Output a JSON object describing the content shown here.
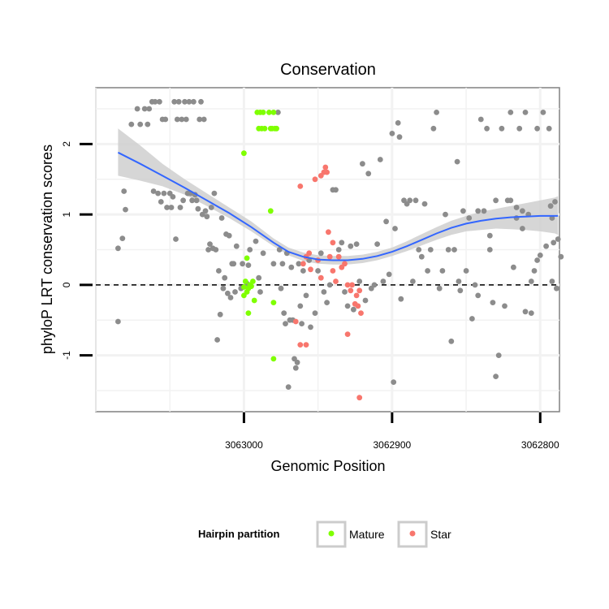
{
  "chart_data": {
    "type": "scatter",
    "title": "Conservation",
    "xlabel": "Genomic Position",
    "ylabel": "phyloP LRT conservation scores",
    "x_reversed": true,
    "xlim": [
      3063100,
      3062787
    ],
    "ylim": [
      -1.8,
      2.8
    ],
    "x_ticks": [
      3063000,
      3062900,
      3062800
    ],
    "x_tick_labels": [
      "3063000",
      "3062900",
      "3062800"
    ],
    "y_ticks": [
      -1,
      0,
      1,
      2
    ],
    "y_tick_labels": [
      "-1",
      "0",
      "1",
      "2"
    ],
    "grid": true,
    "reference_line": {
      "y": 0,
      "style": "dashed"
    },
    "legend": {
      "title": "Hairpin partition",
      "position": "bottom",
      "entries": [
        {
          "label": "Mature",
          "color": "#7FFF00"
        },
        {
          "label": "Star",
          "color": "#F8766D"
        }
      ]
    },
    "colors": {
      "other": "#8c8c8c",
      "mature": "#7FFF00",
      "star": "#F8766D",
      "smooth": "#3366FF",
      "ribbon": "#cccccc"
    },
    "series": [
      {
        "name": "",
        "group": "other",
        "points": [
          [
            3063085,
            -0.52
          ],
          [
            3063085,
            0.52
          ],
          [
            3063082,
            0.66
          ],
          [
            3063081,
            1.33
          ],
          [
            3063080,
            1.07
          ],
          [
            3063076,
            2.28
          ],
          [
            3063072,
            2.5
          ],
          [
            3063070,
            2.28
          ],
          [
            3063067,
            2.5
          ],
          [
            3063065,
            2.28
          ],
          [
            3063064,
            2.5
          ],
          [
            3063062,
            2.6
          ],
          [
            3063061,
            1.33
          ],
          [
            3063060,
            2.6
          ],
          [
            3063058,
            1.3
          ],
          [
            3063057,
            2.6
          ],
          [
            3063056,
            1.18
          ],
          [
            3063055,
            2.35
          ],
          [
            3063054,
            1.3
          ],
          [
            3063053,
            2.35
          ],
          [
            3063052,
            1.1
          ],
          [
            3063050,
            1.3
          ],
          [
            3063049,
            1.1
          ],
          [
            3063048,
            1.25
          ],
          [
            3063047,
            2.6
          ],
          [
            3063046,
            0.65
          ],
          [
            3063045,
            2.35
          ],
          [
            3063044,
            2.6
          ],
          [
            3063043,
            1.1
          ],
          [
            3063042,
            2.35
          ],
          [
            3063041,
            1.2
          ],
          [
            3063040,
            2.6
          ],
          [
            3063039,
            2.35
          ],
          [
            3063038,
            1.3
          ],
          [
            3063037,
            2.6
          ],
          [
            3063036,
            1.3
          ],
          [
            3063035,
            1.2
          ],
          [
            3063034,
            2.6
          ],
          [
            3063033,
            1.28
          ],
          [
            3063032,
            1.2
          ],
          [
            3063031,
            1.08
          ],
          [
            3063030,
            2.35
          ],
          [
            3063029,
            2.6
          ],
          [
            3063028,
            1.0
          ],
          [
            3063027,
            2.35
          ],
          [
            3063026,
            1.05
          ],
          [
            3063025,
            0.97
          ],
          [
            3063024,
            0.5
          ],
          [
            3063023,
            0.58
          ],
          [
            3063022,
            1.1
          ],
          [
            3063021,
            0.52
          ],
          [
            3063020,
            1.3
          ],
          [
            3063019,
            0.5
          ],
          [
            3063018,
            -0.78
          ],
          [
            3063017,
            0.2
          ],
          [
            3063016,
            -0.42
          ],
          [
            3063015,
            0.95
          ],
          [
            3063014,
            -0.05
          ],
          [
            3063013,
            0.1
          ],
          [
            3063012,
            0.72
          ],
          [
            3063011,
            -0.12
          ],
          [
            3063010,
            0.7
          ],
          [
            3063009,
            -0.18
          ],
          [
            3063008,
            0.3
          ],
          [
            3063007,
            0.3
          ],
          [
            3063006,
            -0.1
          ],
          [
            3063005,
            0.55
          ],
          [
            3063002,
            -0.05
          ],
          [
            3063001,
            0.3
          ],
          [
            3062998,
            0.02
          ],
          [
            3062997,
            0.28
          ],
          [
            3062996,
            0.5
          ],
          [
            3062992,
            0.62
          ],
          [
            3062990,
            0.1
          ],
          [
            3062989,
            -0.1
          ],
          [
            3062987,
            0.45
          ],
          [
            3062980,
            0.3
          ],
          [
            3062977,
            2.45
          ],
          [
            3062976,
            0.5
          ],
          [
            3062975,
            -0.05
          ],
          [
            3062974,
            0.3
          ],
          [
            3062973,
            -0.4
          ],
          [
            3062972,
            -0.55
          ],
          [
            3062971,
            0.45
          ],
          [
            3062970,
            -1.45
          ],
          [
            3062969,
            -0.5
          ],
          [
            3062968,
            0.25
          ],
          [
            3062967,
            -0.5
          ],
          [
            3062966,
            -1.05
          ],
          [
            3062965,
            -1.18
          ],
          [
            3062964,
            -1.1
          ],
          [
            3062963,
            0.3
          ],
          [
            3062962,
            -0.3
          ],
          [
            3062961,
            -0.55
          ],
          [
            3062960,
            0.2
          ],
          [
            3062958,
            -0.15
          ],
          [
            3062956,
            0.35
          ],
          [
            3062955,
            -0.6
          ],
          [
            3062952,
            -0.4
          ],
          [
            3062950,
            0.2
          ],
          [
            3062948,
            0.45
          ],
          [
            3062946,
            -0.1
          ],
          [
            3062944,
            -0.25
          ],
          [
            3062942,
            0.0
          ],
          [
            3062940,
            1.35
          ],
          [
            3062938,
            1.35
          ],
          [
            3062936,
            0.5
          ],
          [
            3062934,
            0.6
          ],
          [
            3062932,
            -0.1
          ],
          [
            3062930,
            -0.3
          ],
          [
            3062928,
            0.55
          ],
          [
            3062926,
            -0.35
          ],
          [
            3062924,
            0.58
          ],
          [
            3062922,
            0.05
          ],
          [
            3062920,
            1.72
          ],
          [
            3062918,
            -0.22
          ],
          [
            3062916,
            1.58
          ],
          [
            3062914,
            -0.05
          ],
          [
            3062912,
            0.0
          ],
          [
            3062910,
            0.58
          ],
          [
            3062908,
            1.78
          ],
          [
            3062906,
            0.05
          ],
          [
            3062904,
            0.9
          ],
          [
            3062902,
            0.15
          ],
          [
            3062900,
            2.15
          ],
          [
            3062899,
            -1.38
          ],
          [
            3062898,
            0.8
          ],
          [
            3062896,
            2.3
          ],
          [
            3062895,
            2.1
          ],
          [
            3062894,
            -0.2
          ],
          [
            3062892,
            1.2
          ],
          [
            3062890,
            1.15
          ],
          [
            3062888,
            1.2
          ],
          [
            3062886,
            0.05
          ],
          [
            3062884,
            1.2
          ],
          [
            3062882,
            0.5
          ],
          [
            3062880,
            0.4
          ],
          [
            3062878,
            1.15
          ],
          [
            3062876,
            0.2
          ],
          [
            3062874,
            0.5
          ],
          [
            3062872,
            2.22
          ],
          [
            3062870,
            2.45
          ],
          [
            3062868,
            -0.05
          ],
          [
            3062866,
            0.2
          ],
          [
            3062864,
            1.0
          ],
          [
            3062862,
            0.5
          ],
          [
            3062860,
            -0.8
          ],
          [
            3062858,
            0.5
          ],
          [
            3062856,
            1.75
          ],
          [
            3062855,
            0.05
          ],
          [
            3062854,
            -0.08
          ],
          [
            3062852,
            1.05
          ],
          [
            3062850,
            0.2
          ],
          [
            3062848,
            0.95
          ],
          [
            3062846,
            -0.48
          ],
          [
            3062844,
            0.0
          ],
          [
            3062842,
            -0.15
          ],
          [
            3062840,
            2.35
          ],
          [
            3062838,
            1.05
          ],
          [
            3062836,
            2.22
          ],
          [
            3062834,
            0.5
          ],
          [
            3062832,
            -0.25
          ],
          [
            3062830,
            -1.3
          ],
          [
            3062828,
            -1.0
          ],
          [
            3062826,
            2.22
          ],
          [
            3062824,
            -0.3
          ],
          [
            3062822,
            1.2
          ],
          [
            3062820,
            2.45
          ],
          [
            3062818,
            0.25
          ],
          [
            3062816,
            1.1
          ],
          [
            3062814,
            2.22
          ],
          [
            3062812,
            0.8
          ],
          [
            3062810,
            2.45
          ],
          [
            3062808,
            1.0
          ],
          [
            3062806,
            0.05
          ],
          [
            3062804,
            0.2
          ],
          [
            3062802,
            2.22
          ],
          [
            3062800,
            0.42
          ],
          [
            3062798,
            2.45
          ],
          [
            3062796,
            0.55
          ],
          [
            3062794,
            2.22
          ],
          [
            3062793,
            1.12
          ],
          [
            3062792,
            0.95
          ],
          [
            3062791,
            0.6
          ],
          [
            3062790,
            1.18
          ],
          [
            3062789,
            -0.05
          ],
          [
            3062788,
            0.65
          ],
          [
            3062820,
            1.2
          ],
          [
            3062812,
            1.05
          ],
          [
            3062810,
            -0.38
          ],
          [
            3062806,
            -0.4
          ],
          [
            3062786,
            0.4
          ],
          [
            3062830,
            1.2
          ],
          [
            3062842,
            1.05
          ],
          [
            3062834,
            0.7
          ],
          [
            3062816,
            0.95
          ],
          [
            3062802,
            0.35
          ],
          [
            3062792,
            0.05
          ]
        ]
      },
      {
        "name": "Mature",
        "group": "mature",
        "points": [
          [
            3063000,
            1.87
          ],
          [
            3062991,
            2.45
          ],
          [
            3062990,
            2.22
          ],
          [
            3062989,
            2.45
          ],
          [
            3062988,
            2.22
          ],
          [
            3062987,
            2.45
          ],
          [
            3062986,
            2.22
          ],
          [
            3062983,
            2.45
          ],
          [
            3062982,
            2.22
          ],
          [
            3062981,
            2.22
          ],
          [
            3062980,
            2.45
          ],
          [
            3062979,
            2.22
          ],
          [
            3062978,
            2.22
          ],
          [
            3062998,
            0.38
          ],
          [
            3062999,
            0.05
          ],
          [
            3063000,
            -0.03
          ],
          [
            3062997,
            -0.05
          ],
          [
            3062996,
            0.0
          ],
          [
            3062995,
            -0.02
          ],
          [
            3062998,
            -0.1
          ],
          [
            3063000,
            -0.15
          ],
          [
            3062994,
            0.05
          ],
          [
            3062997,
            -0.4
          ],
          [
            3062993,
            -0.22
          ],
          [
            3062982,
            1.05
          ],
          [
            3062980,
            -0.25
          ],
          [
            3062980,
            -1.05
          ]
        ]
      },
      {
        "name": "Star",
        "group": "star",
        "points": [
          [
            3062962,
            1.4
          ],
          [
            3062952,
            1.5
          ],
          [
            3062948,
            1.55
          ],
          [
            3062946,
            1.6
          ],
          [
            3062945,
            1.67
          ],
          [
            3062944,
            1.6
          ],
          [
            3062943,
            0.75
          ],
          [
            3062940,
            0.6
          ],
          [
            3062942,
            0.4
          ],
          [
            3062938,
            0.05
          ],
          [
            3062936,
            0.4
          ],
          [
            3062934,
            0.25
          ],
          [
            3062932,
            0.3
          ],
          [
            3062930,
            0.0
          ],
          [
            3062928,
            -0.08
          ],
          [
            3062927,
            0.0
          ],
          [
            3062925,
            -0.27
          ],
          [
            3062924,
            -0.15
          ],
          [
            3062923,
            -0.3
          ],
          [
            3062922,
            -0.08
          ],
          [
            3062921,
            -0.4
          ],
          [
            3062950,
            0.35
          ],
          [
            3062956,
            0.45
          ],
          [
            3062958,
            0.4
          ],
          [
            3062960,
            0.3
          ],
          [
            3062955,
            0.22
          ],
          [
            3062948,
            0.1
          ],
          [
            3062940,
            0.2
          ],
          [
            3062958,
            -0.85
          ],
          [
            3062962,
            -0.85
          ],
          [
            3062965,
            -0.52
          ],
          [
            3062930,
            -0.7
          ],
          [
            3062922,
            -1.6
          ]
        ]
      }
    ],
    "smooth": {
      "x": [
        3063085,
        3063070,
        3063055,
        3063040,
        3063025,
        3063010,
        3062995,
        3062980,
        3062970,
        3062960,
        3062950,
        3062940,
        3062930,
        3062920,
        3062910,
        3062900,
        3062890,
        3062880,
        3062870,
        3062860,
        3062850,
        3062840,
        3062830,
        3062820,
        3062810,
        3062800,
        3062790,
        3062788
      ],
      "y": [
        1.88,
        1.72,
        1.55,
        1.38,
        1.2,
        1.02,
        0.82,
        0.6,
        0.47,
        0.4,
        0.36,
        0.35,
        0.35,
        0.37,
        0.41,
        0.47,
        0.55,
        0.64,
        0.73,
        0.81,
        0.87,
        0.91,
        0.94,
        0.96,
        0.97,
        0.98,
        0.98,
        0.98
      ],
      "ymin": [
        1.55,
        1.48,
        1.4,
        1.28,
        1.12,
        0.95,
        0.76,
        0.55,
        0.42,
        0.34,
        0.3,
        0.29,
        0.29,
        0.31,
        0.35,
        0.41,
        0.48,
        0.56,
        0.64,
        0.71,
        0.76,
        0.78,
        0.8,
        0.79,
        0.78,
        0.76,
        0.73,
        0.71
      ],
      "ymax": [
        2.22,
        1.98,
        1.72,
        1.5,
        1.3,
        1.1,
        0.9,
        0.66,
        0.53,
        0.46,
        0.42,
        0.41,
        0.41,
        0.43,
        0.47,
        0.53,
        0.62,
        0.72,
        0.82,
        0.91,
        0.98,
        1.04,
        1.08,
        1.12,
        1.16,
        1.2,
        1.24,
        1.26
      ]
    }
  }
}
